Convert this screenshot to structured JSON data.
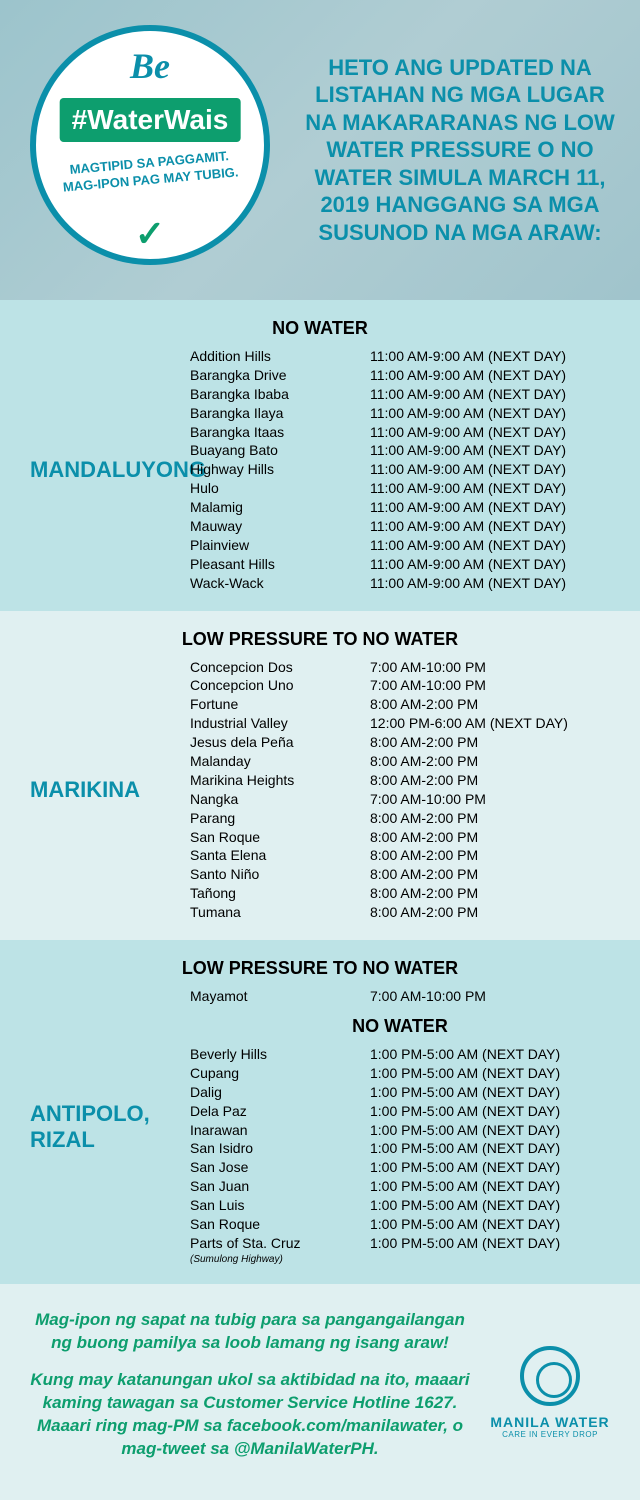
{
  "header": {
    "badge_be": "Be",
    "badge_tag": "#WaterWais",
    "badge_sub1": "MAGTIPID SA PAGGAMIT.",
    "badge_sub2": "MAG-IPON PAG MAY TUBIG.",
    "badge_check": "✓",
    "intro": "HETO ANG UPDATED NA LISTAHAN NG MGA LUGAR NA MAKARARANAS NG LOW WATER PRESSURE O NO WATER SIMULA MARCH 11, 2019 HANGGANG SA MGA SUSUNOD NA MGA ARAW:"
  },
  "titles": {
    "nowater": "NO WATER",
    "lowpressure": "LOW PRESSURE TO NO WATER"
  },
  "mandaluyong": {
    "city": "MANDALUYONG",
    "items": [
      {
        "loc": "Addition Hills",
        "time": "11:00 AM-9:00 AM (NEXT DAY)"
      },
      {
        "loc": "Barangka Drive",
        "time": "11:00 AM-9:00 AM (NEXT DAY)"
      },
      {
        "loc": "Barangka Ibaba",
        "time": "11:00 AM-9:00 AM (NEXT DAY)"
      },
      {
        "loc": "Barangka Ilaya",
        "time": "11:00 AM-9:00 AM (NEXT DAY)"
      },
      {
        "loc": "Barangka Itaas",
        "time": "11:00 AM-9:00 AM (NEXT DAY)"
      },
      {
        "loc": "Buayang Bato",
        "time": "11:00 AM-9:00 AM (NEXT DAY)"
      },
      {
        "loc": "Highway Hills",
        "time": "11:00 AM-9:00 AM (NEXT DAY)"
      },
      {
        "loc": "Hulo",
        "time": "11:00 AM-9:00 AM (NEXT DAY)"
      },
      {
        "loc": "Malamig",
        "time": "11:00 AM-9:00 AM (NEXT DAY)"
      },
      {
        "loc": "Mauway",
        "time": "11:00 AM-9:00 AM (NEXT DAY)"
      },
      {
        "loc": "Plainview",
        "time": "11:00 AM-9:00 AM (NEXT DAY)"
      },
      {
        "loc": "Pleasant Hills",
        "time": "11:00 AM-9:00 AM (NEXT DAY)"
      },
      {
        "loc": "Wack-Wack",
        "time": "11:00 AM-9:00 AM (NEXT DAY)"
      }
    ]
  },
  "marikina": {
    "city": "MARIKINA",
    "items": [
      {
        "loc": "Concepcion Dos",
        "time": "7:00 AM-10:00 PM"
      },
      {
        "loc": "Concepcion Uno",
        "time": "7:00 AM-10:00 PM"
      },
      {
        "loc": "Fortune",
        "time": "8:00 AM-2:00 PM"
      },
      {
        "loc": "Industrial Valley",
        "time": "12:00 PM-6:00 AM (NEXT DAY)"
      },
      {
        "loc": "Jesus dela Peña",
        "time": "8:00 AM-2:00 PM"
      },
      {
        "loc": "Malanday",
        "time": "8:00 AM-2:00 PM"
      },
      {
        "loc": "Marikina Heights",
        "time": "8:00 AM-2:00 PM"
      },
      {
        "loc": "Nangka",
        "time": "7:00 AM-10:00 PM"
      },
      {
        "loc": "Parang",
        "time": "8:00 AM-2:00 PM"
      },
      {
        "loc": "San Roque",
        "time": "8:00 AM-2:00 PM"
      },
      {
        "loc": "Santa Elena",
        "time": "8:00 AM-2:00 PM"
      },
      {
        "loc": "Santo Niño",
        "time": "8:00 AM-2:00 PM"
      },
      {
        "loc": "Tañong",
        "time": "8:00 AM-2:00 PM"
      },
      {
        "loc": "Tumana",
        "time": "8:00 AM-2:00 PM"
      }
    ]
  },
  "antipolo": {
    "city": "ANTIPOLO, RIZAL",
    "lp_items": [
      {
        "loc": "Mayamot",
        "time": "7:00 AM-10:00 PM"
      }
    ],
    "nw_items": [
      {
        "loc": "Beverly Hills",
        "time": "1:00 PM-5:00 AM (NEXT DAY)"
      },
      {
        "loc": "Cupang",
        "time": "1:00 PM-5:00 AM (NEXT DAY)"
      },
      {
        "loc": "Dalig",
        "time": "1:00 PM-5:00 AM (NEXT DAY)"
      },
      {
        "loc": "Dela Paz",
        "time": "1:00 PM-5:00 AM (NEXT DAY)"
      },
      {
        "loc": "Inarawan",
        "time": "1:00 PM-5:00 AM (NEXT DAY)"
      },
      {
        "loc": "San Isidro",
        "time": "1:00 PM-5:00 AM (NEXT DAY)"
      },
      {
        "loc": "San Jose",
        "time": "1:00 PM-5:00 AM (NEXT DAY)"
      },
      {
        "loc": "San Juan",
        "time": "1:00 PM-5:00 AM (NEXT DAY)"
      },
      {
        "loc": "San Luis",
        "time": "1:00 PM-5:00 AM (NEXT DAY)"
      },
      {
        "loc": "San Roque",
        "time": "1:00 PM-5:00 AM (NEXT DAY)"
      },
      {
        "loc": "Parts of Sta. Cruz",
        "sub": "(Sumulong Highway)",
        "time": "1:00 PM-5:00 AM (NEXT DAY)"
      }
    ]
  },
  "footer": {
    "p1": "Mag-ipon ng sapat na tubig para sa pangangailangan ng buong pamilya sa loob lamang ng isang araw!",
    "p2": "Kung may katanungan ukol sa aktibidad na ito, maaari kaming tawagan sa Customer Service Hotline 1627. Maaari ring mag-PM sa facebook.com/manilawater, o mag-tweet sa @ManilaWaterPH.",
    "logo_name": "MANILA WATER",
    "logo_tag": "CARE IN EVERY DROP"
  }
}
